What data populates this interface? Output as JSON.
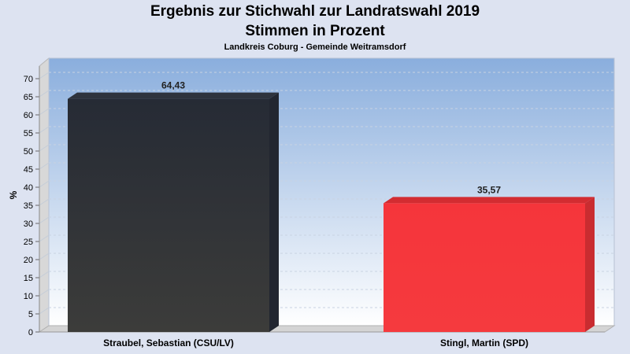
{
  "header": {
    "title_line1": "Ergebnis zur Stichwahl zur Landratswahl 2019",
    "title_line2": "Stimmen in Prozent",
    "subtitle": "Landkreis Coburg - Gemeinde Weitramsdorf"
  },
  "chart_data": {
    "type": "bar",
    "title": "Ergebnis zur Stichwahl zur Landratswahl 2019 Stimmen in Prozent",
    "subtitle": "Landkreis Coburg - Gemeinde Weitramsdorf",
    "xlabel": "",
    "ylabel": "%",
    "ylim": [
      0,
      70
    ],
    "yticks": [
      0,
      5,
      10,
      15,
      20,
      25,
      30,
      35,
      40,
      45,
      50,
      55,
      60,
      65,
      70
    ],
    "grid": true,
    "categories": [
      "Straubel, Sebastian (CSU/LV)",
      "Stingl, Martin (SPD)"
    ],
    "values": [
      64.43,
      35.57
    ],
    "value_labels": [
      "64,43",
      "35,57"
    ],
    "colors": [
      "#3a3a3a",
      "#f5353b"
    ]
  }
}
